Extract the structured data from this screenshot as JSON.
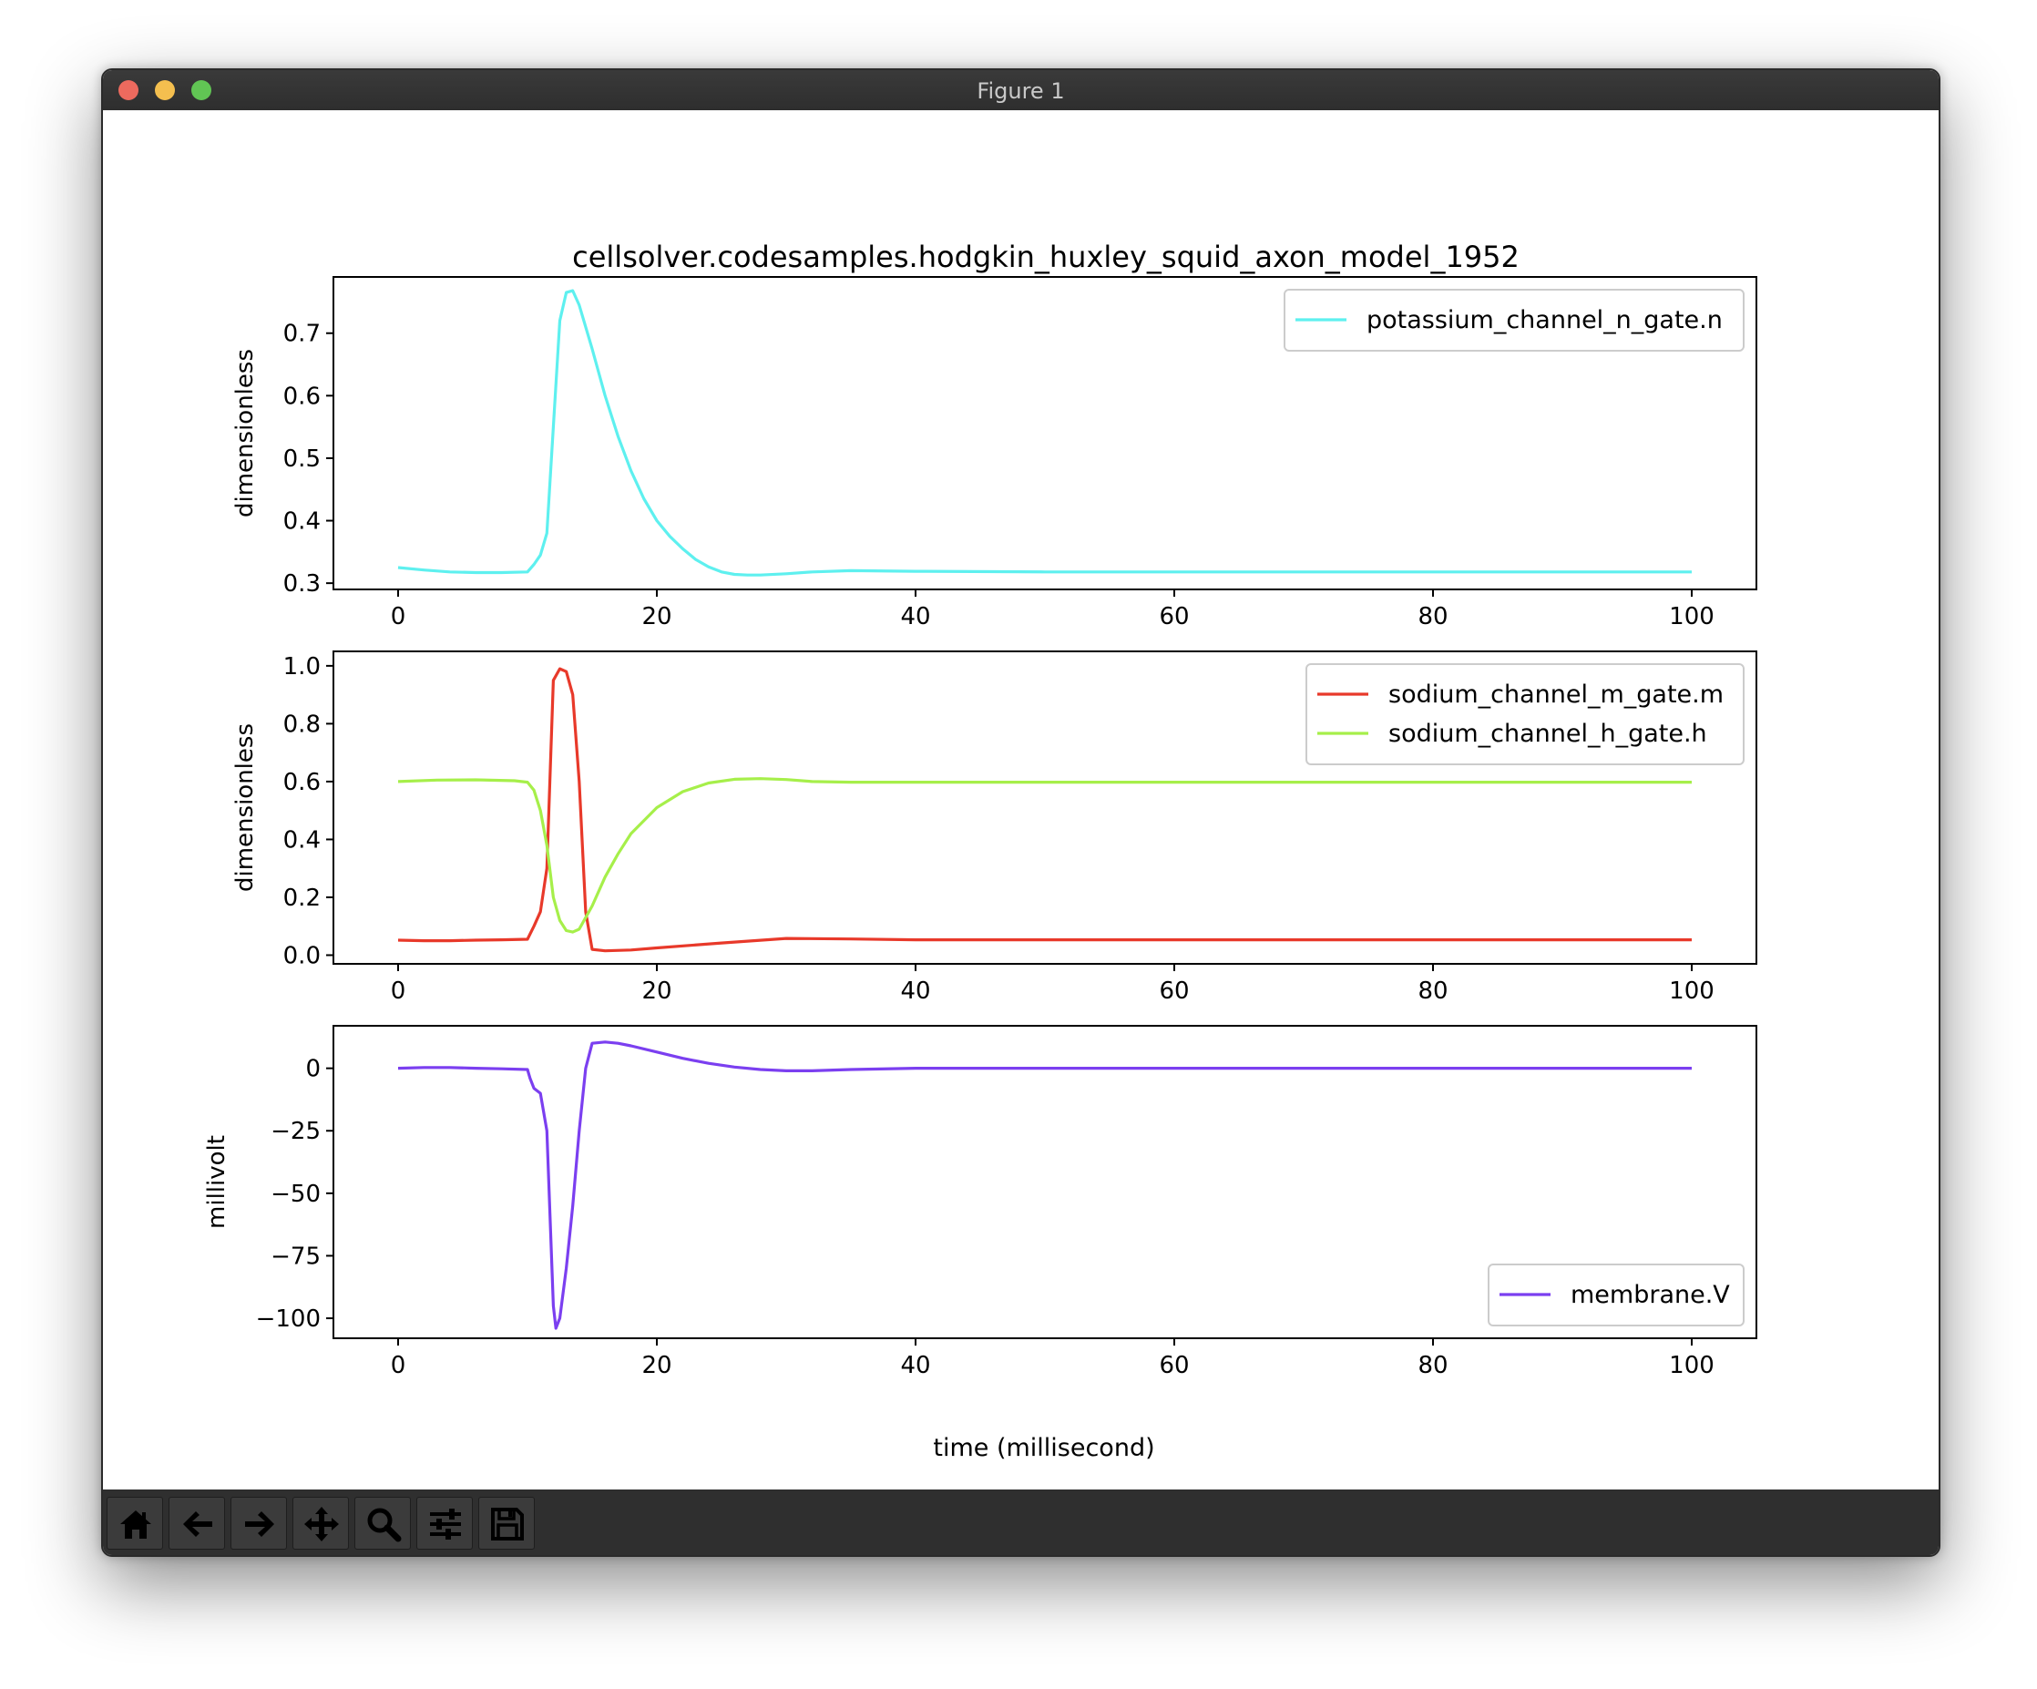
{
  "window": {
    "title": "Figure 1"
  },
  "figure": {
    "suptitle": "cellsolver.codesamples.hodgkin_huxley_squid_axon_model_1952",
    "xlabel": "time (millisecond)"
  },
  "toolbar": {
    "buttons": [
      "home-icon",
      "back-arrow-icon",
      "forward-arrow-icon",
      "pan-move-icon",
      "zoom-magnifier-icon",
      "configure-subplots-icon",
      "save-floppy-icon"
    ]
  },
  "chart_data": [
    {
      "type": "line",
      "title": "cellsolver.codesamples.hodgkin_huxley_squid_axon_model_1952",
      "xlabel": "",
      "ylabel": "dimensionless",
      "xlim": [
        -5,
        105
      ],
      "ylim": [
        0.29,
        0.79
      ],
      "xticks": [
        "0",
        "20",
        "40",
        "60",
        "80",
        "100"
      ],
      "yticks": [
        "0.3",
        "0.4",
        "0.5",
        "0.6",
        "0.7"
      ],
      "ytick_values": [
        0.3,
        0.4,
        0.5,
        0.6,
        0.7
      ],
      "legend": "upper right",
      "series": [
        {
          "name": "potassium_channel_n_gate.n",
          "color": "#5ef0ef",
          "x": [
            0,
            2,
            4,
            6,
            8,
            10,
            10.5,
            11,
            11.5,
            12,
            12.5,
            13,
            13.5,
            14,
            15,
            16,
            17,
            18,
            19,
            20,
            21,
            22,
            23,
            24,
            25,
            26,
            27,
            28,
            30,
            32,
            35,
            40,
            50,
            60,
            70,
            80,
            90,
            100
          ],
          "y": [
            0.325,
            0.321,
            0.318,
            0.317,
            0.317,
            0.318,
            0.33,
            0.345,
            0.38,
            0.55,
            0.72,
            0.765,
            0.768,
            0.745,
            0.675,
            0.6,
            0.535,
            0.48,
            0.435,
            0.4,
            0.375,
            0.355,
            0.338,
            0.326,
            0.318,
            0.314,
            0.313,
            0.313,
            0.315,
            0.318,
            0.32,
            0.319,
            0.318,
            0.318,
            0.318,
            0.318,
            0.318,
            0.318
          ]
        }
      ]
    },
    {
      "type": "line",
      "xlabel": "",
      "ylabel": "dimensionless",
      "xlim": [
        -5,
        105
      ],
      "ylim": [
        -0.03,
        1.05
      ],
      "xticks": [
        "0",
        "20",
        "40",
        "60",
        "80",
        "100"
      ],
      "yticks": [
        "0.0",
        "0.2",
        "0.4",
        "0.6",
        "0.8",
        "1.0"
      ],
      "ytick_values": [
        0.0,
        0.2,
        0.4,
        0.6,
        0.8,
        1.0
      ],
      "legend": "upper right",
      "series": [
        {
          "name": "sodium_channel_m_gate.m",
          "color": "#e8392a",
          "x": [
            0,
            2,
            4,
            6,
            8,
            10,
            10.5,
            11,
            11.5,
            12,
            12.5,
            13,
            13.5,
            14,
            14.5,
            15,
            16,
            18,
            20,
            25,
            30,
            35,
            40,
            50,
            60,
            70,
            80,
            90,
            100
          ],
          "y": [
            0.052,
            0.05,
            0.05,
            0.052,
            0.053,
            0.055,
            0.1,
            0.15,
            0.3,
            0.95,
            0.99,
            0.98,
            0.9,
            0.6,
            0.15,
            0.02,
            0.015,
            0.018,
            0.025,
            0.042,
            0.058,
            0.056,
            0.053,
            0.053,
            0.053,
            0.053,
            0.053,
            0.053,
            0.053
          ]
        },
        {
          "name": "sodium_channel_h_gate.h",
          "color": "#a6ef4a",
          "x": [
            0,
            3,
            6,
            9,
            10,
            10.5,
            11,
            11.5,
            12,
            12.5,
            13,
            13.5,
            14,
            15,
            16,
            17,
            18,
            20,
            22,
            24,
            26,
            28,
            30,
            32,
            35,
            40,
            50,
            60,
            70,
            80,
            90,
            100
          ],
          "y": [
            0.6,
            0.605,
            0.606,
            0.603,
            0.598,
            0.57,
            0.5,
            0.38,
            0.2,
            0.12,
            0.085,
            0.08,
            0.09,
            0.17,
            0.27,
            0.35,
            0.42,
            0.51,
            0.565,
            0.595,
            0.608,
            0.61,
            0.607,
            0.6,
            0.598,
            0.598,
            0.598,
            0.598,
            0.598,
            0.598,
            0.598,
            0.598
          ]
        }
      ]
    },
    {
      "type": "line",
      "xlabel": "time (millisecond)",
      "ylabel": "millivolt",
      "xlim": [
        -5,
        105
      ],
      "ylim": [
        -108,
        17
      ],
      "xticks": [
        "0",
        "20",
        "40",
        "60",
        "80",
        "100"
      ],
      "yticks": [
        "0",
        "−25",
        "−50",
        "−75",
        "−100"
      ],
      "ytick_values": [
        0,
        -25,
        -50,
        -75,
        -100
      ],
      "legend": "lower right",
      "series": [
        {
          "name": "membrane.V",
          "color": "#7b3ff0",
          "x": [
            0,
            2,
            4,
            6,
            8,
            10,
            10.2,
            10.5,
            11,
            11.5,
            12,
            12.2,
            12.5,
            13,
            13.5,
            14,
            14.5,
            15,
            16,
            17,
            18,
            20,
            22,
            24,
            26,
            28,
            30,
            32,
            35,
            40,
            50,
            60,
            70,
            80,
            90,
            100
          ],
          "y": [
            0,
            0.3,
            0.3,
            0,
            -0.2,
            -0.5,
            -4,
            -8,
            -10,
            -25,
            -95,
            -104,
            -100,
            -80,
            -55,
            -25,
            0,
            10,
            10.5,
            10,
            9,
            6.5,
            4,
            2,
            0.5,
            -0.5,
            -1,
            -1,
            -0.5,
            0,
            0,
            0,
            0,
            0,
            0,
            0
          ]
        }
      ]
    }
  ]
}
